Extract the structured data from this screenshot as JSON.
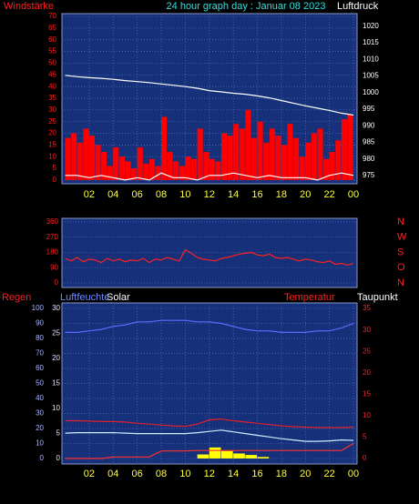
{
  "chart_data": [
    {
      "type": "line",
      "title": "24 hour graph day : Januar 08 2023",
      "ylabel": "Windstärke",
      "y2label": "Luftdruck",
      "xlim": [
        -0.27,
        24.3
      ],
      "xticks": [
        {
          "value": 2,
          "label": "02"
        },
        {
          "value": 4,
          "label": "04"
        },
        {
          "value": 6,
          "label": "06"
        },
        {
          "value": 8,
          "label": "08"
        },
        10,
        12,
        14,
        16,
        18,
        20,
        22,
        {
          "value": 24,
          "label": "00"
        }
      ],
      "ylim": [
        -1.6,
        71.2
      ],
      "yticks": [
        0,
        5,
        10,
        15,
        20,
        25,
        30,
        35,
        40,
        45,
        50,
        55,
        60,
        65,
        70
      ],
      "y2lim": [
        972.5,
        1023.8
      ],
      "y2ticks": [
        975,
        980,
        985,
        990,
        995,
        1000,
        1005,
        1010,
        1015,
        1020
      ],
      "grid": true,
      "series": [
        {
          "type": "bar",
          "color": "#ff0000",
          "x": [
            0,
            0.5,
            1,
            1.5,
            2,
            2.5,
            3,
            3.5,
            4,
            4.5,
            5,
            5.5,
            6,
            6.5,
            7,
            7.5,
            8,
            8.5,
            9,
            9.5,
            10,
            10.5,
            11,
            11.5,
            12,
            12.5,
            13,
            13.5,
            14,
            14.5,
            15,
            15.5,
            16,
            16.5,
            17,
            17.5,
            18,
            18.5,
            19,
            19.5,
            20,
            20.5,
            21,
            21.5,
            22,
            22.5,
            23,
            23.5
          ],
          "values": [
            18,
            20,
            16,
            22,
            19,
            15,
            12,
            6,
            14,
            10,
            8,
            5,
            14,
            7,
            9,
            6,
            27,
            12,
            8,
            6,
            10,
            9,
            22,
            12,
            9,
            8,
            20,
            19,
            24,
            22,
            30,
            18,
            25,
            16,
            22,
            19,
            15,
            24,
            18,
            10,
            16,
            20,
            22,
            9,
            12,
            17,
            26,
            28
          ]
        },
        {
          "type": "line",
          "color": "#ffffff",
          "x": [
            0,
            1,
            2,
            3,
            4,
            5,
            6,
            7,
            8,
            9,
            10,
            11,
            12,
            13,
            14,
            15,
            16,
            17,
            18,
            19,
            20,
            21,
            22,
            23,
            24
          ],
          "values": [
            2,
            2,
            1,
            2,
            1,
            0,
            1,
            0,
            3,
            1,
            1,
            0,
            2,
            2,
            3,
            2,
            1,
            2,
            1,
            1,
            1,
            0,
            2,
            3,
            2
          ]
        },
        {
          "type": "line",
          "color": "#ffffff",
          "axis": "y2",
          "x": [
            0,
            1,
            2,
            3,
            4,
            5,
            6,
            7,
            8,
            9,
            10,
            11,
            12,
            13,
            14,
            15,
            16,
            17,
            18,
            19,
            20,
            21,
            22,
            23,
            24
          ],
          "values": [
            1005.2,
            1004.8,
            1004.5,
            1004.3,
            1004,
            1003.6,
            1003.3,
            1003,
            1002.6,
            1002.2,
            1001.8,
            1001.3,
            1000.6,
            1000.2,
            999.8,
            999.5,
            999,
            998.4,
            997.6,
            996.8,
            996,
            995.3,
            994.6,
            993.8,
            993.2
          ]
        }
      ]
    },
    {
      "type": "line",
      "xlim": [
        -0.27,
        24.3
      ],
      "ylim": [
        -27,
        381
      ],
      "yticks": [
        0,
        90,
        180,
        270,
        360
      ],
      "y2lim": [
        -27,
        381
      ],
      "y2ticks": [
        {
          "value": 0,
          "label": "N"
        },
        {
          "value": 90,
          "label": "O"
        },
        {
          "value": 180,
          "label": "S"
        },
        {
          "value": 270,
          "label": "W"
        },
        {
          "value": 360,
          "label": "N"
        }
      ],
      "grid": true,
      "series": [
        {
          "type": "line",
          "color": "#ff2020",
          "x": [
            0,
            0.5,
            1,
            1.5,
            2,
            2.5,
            3,
            3.5,
            4,
            4.5,
            5,
            5.5,
            6,
            6.5,
            7,
            7.5,
            8,
            8.5,
            9,
            9.5,
            10,
            10.5,
            11,
            11.5,
            12,
            12.5,
            13,
            13.5,
            14,
            14.5,
            15,
            15.5,
            16,
            16.5,
            17,
            17.5,
            18,
            18.5,
            19,
            19.5,
            20,
            20.5,
            21,
            21.5,
            22,
            22.5,
            23,
            23.5,
            24
          ],
          "values": [
            145,
            130,
            150,
            125,
            140,
            135,
            120,
            145,
            130,
            140,
            125,
            135,
            130,
            145,
            120,
            140,
            135,
            150,
            140,
            130,
            195,
            175,
            150,
            140,
            135,
            130,
            145,
            150,
            160,
            170,
            175,
            180,
            165,
            160,
            170,
            150,
            145,
            150,
            140,
            130,
            140,
            135,
            125,
            120,
            130,
            110,
            115,
            105,
            115
          ]
        }
      ]
    },
    {
      "type": "line",
      "xlim": [
        -0.27,
        24.3
      ],
      "xticks": [
        {
          "value": 2,
          "label": "02"
        },
        {
          "value": 4,
          "label": "04"
        },
        {
          "value": 6,
          "label": "06"
        },
        {
          "value": 8,
          "label": "08"
        },
        10,
        12,
        14,
        16,
        18,
        20,
        22,
        {
          "value": 24,
          "label": "00"
        }
      ],
      "ylim": [
        -3.6,
        103.6
      ],
      "yticks": [
        0,
        10,
        20,
        30,
        40,
        50,
        60,
        70,
        80,
        90,
        100
      ],
      "y3lim": [
        -1.1,
        31.1
      ],
      "y3ticks": [
        0,
        5,
        10,
        15,
        20,
        25,
        30
      ],
      "y2lim": [
        -1.3,
        36.3
      ],
      "y2ticks": [
        0,
        5,
        10,
        15,
        20,
        25,
        30,
        35
      ],
      "grid": true,
      "series": [
        {
          "name": "Regen",
          "type": "line",
          "color": "#ff3030",
          "axis": "y3",
          "x": [
            0,
            1,
            2,
            3,
            4,
            5,
            6,
            7,
            8,
            9,
            10,
            11,
            12,
            13,
            14,
            15,
            16,
            17,
            18,
            19,
            20,
            21,
            22,
            23,
            24
          ],
          "values": [
            0,
            0,
            0,
            0,
            0.3,
            0.3,
            0.3,
            0.3,
            1.5,
            1.5,
            1.5,
            1.6,
            1.6,
            1.6,
            1.6,
            1.6,
            1.6,
            1.6,
            1.6,
            1.6,
            1.6,
            1.6,
            1.6,
            1.6,
            3
          ]
        },
        {
          "name": "Luftfeuchte",
          "type": "line",
          "color": "#5a6cff",
          "x": [
            0,
            1,
            2,
            3,
            4,
            5,
            6,
            7,
            8,
            9,
            10,
            11,
            12,
            13,
            14,
            15,
            16,
            17,
            18,
            19,
            20,
            21,
            22,
            23,
            24
          ],
          "values": [
            84,
            84,
            85,
            86,
            88,
            89,
            91,
            91,
            92,
            92,
            92,
            91,
            91,
            90,
            88,
            86,
            85,
            85,
            84,
            84,
            84,
            85,
            85,
            87,
            90
          ]
        },
        {
          "name": "Solar",
          "type": "bar",
          "color": "#ffff00",
          "axis": "y3",
          "x": [
            0,
            1,
            2,
            3,
            4,
            5,
            6,
            7,
            8,
            9,
            10,
            11,
            12,
            13,
            14,
            15,
            16,
            17,
            18,
            19,
            20,
            21,
            22,
            23,
            24
          ],
          "values": [
            0,
            0,
            0,
            0,
            0,
            0,
            0,
            0,
            0,
            0,
            0,
            0.8,
            2.2,
            1.5,
            1,
            0.7,
            0.3,
            0,
            0,
            0,
            0,
            0,
            0,
            0,
            0
          ]
        },
        {
          "name": "Temperatur",
          "type": "line",
          "color": "#e0202a",
          "axis": "y2",
          "x": [
            0,
            1,
            2,
            3,
            4,
            5,
            6,
            7,
            8,
            9,
            10,
            11,
            12,
            13,
            14,
            15,
            16,
            17,
            18,
            19,
            20,
            21,
            22,
            23,
            24
          ],
          "values": [
            8.8,
            8.8,
            8.7,
            8.6,
            8.6,
            8.5,
            8.2,
            8,
            7.8,
            7.6,
            7.5,
            8,
            9,
            9.2,
            8.8,
            8.5,
            8.2,
            7.9,
            7.6,
            7.4,
            7.3,
            7.2,
            7.2,
            7.2,
            7.3
          ]
        },
        {
          "name": "Taupunkt",
          "type": "line",
          "color": "#c8f0ff",
          "axis": "y2",
          "x": [
            0,
            1,
            2,
            3,
            4,
            5,
            6,
            7,
            8,
            9,
            10,
            11,
            12,
            13,
            14,
            15,
            16,
            17,
            18,
            19,
            20,
            21,
            22,
            23,
            24
          ],
          "values": [
            5.9,
            6,
            6,
            6,
            6,
            5.9,
            5.8,
            5.8,
            5.8,
            5.8,
            5.8,
            6,
            6.3,
            6.6,
            6.2,
            5.8,
            5.4,
            5,
            4.6,
            4.3,
            4,
            4,
            4.1,
            4.3,
            4.2
          ]
        }
      ]
    }
  ]
}
